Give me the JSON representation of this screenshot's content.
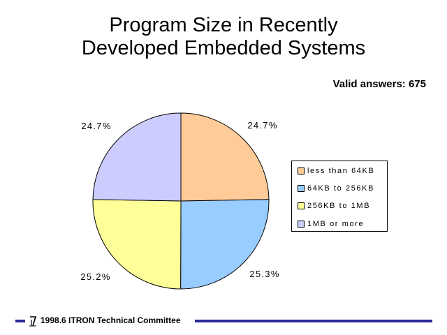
{
  "title": {
    "line1": "Program Size in Recently",
    "line2": "Developed Embedded Systems"
  },
  "note": "Valid answers: 675",
  "chart_data": {
    "type": "pie",
    "title": "Program Size in Recently Developed Embedded Systems",
    "categories": [
      "less than 64KB",
      "64KB to 256KB",
      "256KB to 1MB",
      "1MB or more"
    ],
    "values": [
      24.7,
      25.3,
      25.2,
      24.7
    ],
    "labels": [
      "24.7%",
      "25.3%",
      "25.2%",
      "24.7%"
    ],
    "colors": [
      "#ffcc99",
      "#99ccff",
      "#ffff99",
      "#ccccff"
    ],
    "legend_position": "right"
  },
  "footer": {
    "text": "1998.6  ITRON Technical Committee",
    "accent_color": "#2b2b99"
  }
}
